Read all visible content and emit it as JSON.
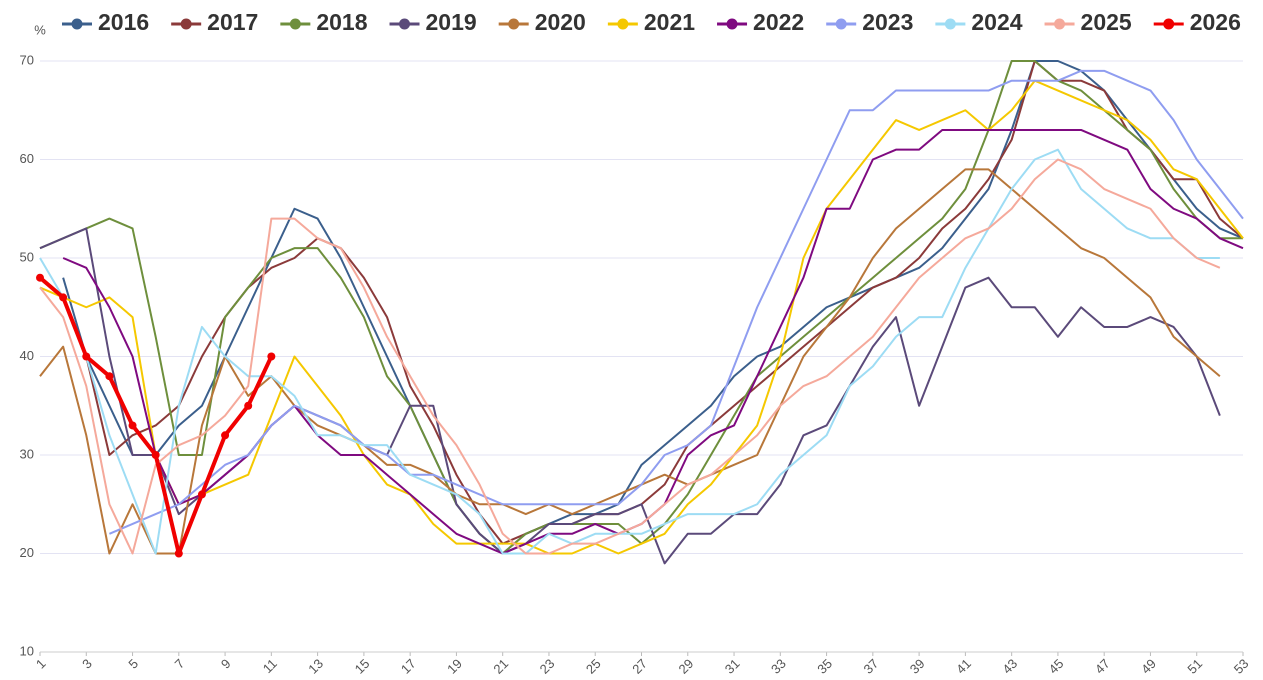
{
  "chart_data": {
    "type": "line",
    "y_unit": "%",
    "x": [
      1,
      2,
      3,
      4,
      5,
      6,
      7,
      8,
      9,
      10,
      11,
      12,
      13,
      14,
      15,
      16,
      17,
      18,
      19,
      20,
      21,
      22,
      23,
      24,
      25,
      26,
      27,
      28,
      29,
      30,
      31,
      32,
      33,
      34,
      35,
      36,
      37,
      38,
      39,
      40,
      41,
      42,
      43,
      44,
      45,
      46,
      47,
      48,
      49,
      50,
      51,
      52,
      53
    ],
    "xlim": [
      1,
      53
    ],
    "xticks": [
      1,
      3,
      5,
      7,
      9,
      11,
      13,
      15,
      17,
      19,
      21,
      23,
      25,
      27,
      29,
      31,
      33,
      35,
      37,
      39,
      41,
      43,
      45,
      47,
      49,
      51,
      53
    ],
    "ylim": [
      10,
      70
    ],
    "yticks": [
      10,
      20,
      30,
      40,
      50,
      60,
      70
    ],
    "grid": true,
    "legend": "top",
    "series": [
      {
        "name": "2016",
        "color": "#3b5f8c",
        "values": [
          null,
          48,
          40,
          35,
          30,
          30,
          33,
          35,
          40,
          45,
          50,
          55,
          54,
          50,
          45,
          40,
          35,
          30,
          25,
          22,
          20,
          22,
          23,
          24,
          24,
          25,
          29,
          31,
          33,
          35,
          38,
          40,
          41,
          43,
          45,
          46,
          47,
          48,
          49,
          51,
          54,
          57,
          63,
          70,
          70,
          69,
          67,
          64,
          61,
          58,
          55,
          53,
          52
        ]
      },
      {
        "name": "2017",
        "color": "#8b3a3a",
        "values": [
          null,
          null,
          40,
          30,
          32,
          33,
          35,
          40,
          44,
          47,
          49,
          50,
          52,
          51,
          48,
          44,
          37,
          33,
          28,
          24,
          21,
          22,
          23,
          23,
          24,
          24,
          25,
          27,
          31,
          33,
          35,
          37,
          39,
          41,
          43,
          45,
          47,
          48,
          50,
          53,
          55,
          58,
          62,
          70,
          68,
          68,
          67,
          63,
          61,
          58,
          58,
          54,
          52
        ]
      },
      {
        "name": "2018",
        "color": "#6e8f3c",
        "values": [
          51,
          52,
          53,
          54,
          53,
          42,
          30,
          30,
          44,
          47,
          50,
          51,
          51,
          48,
          44,
          38,
          35,
          30,
          25,
          22,
          20,
          22,
          23,
          23,
          23,
          23,
          21,
          23,
          26,
          30,
          34,
          38,
          40,
          42,
          44,
          46,
          48,
          50,
          52,
          54,
          57,
          63,
          70,
          70,
          68,
          67,
          65,
          63,
          61,
          57,
          54,
          52,
          52
        ]
      },
      {
        "name": "2019",
        "color": "#5b4a7a",
        "values": [
          51,
          52,
          53,
          40,
          30,
          30,
          24,
          26,
          28,
          30,
          33,
          35,
          34,
          33,
          31,
          30,
          35,
          35,
          25,
          22,
          20,
          21,
          23,
          23,
          24,
          24,
          25,
          19,
          22,
          22,
          24,
          24,
          27,
          32,
          33,
          37,
          41,
          44,
          35,
          41,
          47,
          48,
          45,
          45,
          42,
          45,
          43,
          43,
          44,
          43,
          40,
          34,
          null
        ]
      },
      {
        "name": "2020",
        "color": "#b8773a",
        "values": [
          38,
          41,
          32,
          20,
          25,
          20,
          20,
          33,
          40,
          36,
          38,
          35,
          33,
          32,
          31,
          29,
          29,
          28,
          26,
          25,
          25,
          24,
          25,
          24,
          25,
          26,
          27,
          28,
          27,
          28,
          29,
          30,
          35,
          40,
          43,
          46,
          50,
          53,
          55,
          57,
          59,
          59,
          57,
          55,
          53,
          51,
          50,
          48,
          46,
          42,
          40,
          38,
          null
        ]
      },
      {
        "name": "2021",
        "color": "#f5c800",
        "values": [
          47,
          46,
          45,
          46,
          44,
          30,
          25,
          26,
          27,
          28,
          34,
          40,
          37,
          34,
          30,
          27,
          26,
          23,
          21,
          21,
          21,
          21,
          20,
          20,
          21,
          20,
          21,
          22,
          25,
          27,
          30,
          33,
          40,
          50,
          55,
          58,
          61,
          64,
          63,
          64,
          65,
          63,
          65,
          68,
          67,
          66,
          65,
          64,
          62,
          59,
          58,
          55,
          52
        ]
      },
      {
        "name": "2022",
        "color": "#7f0a80",
        "values": [
          null,
          50,
          49,
          45,
          40,
          30,
          25,
          26,
          28,
          30,
          33,
          35,
          32,
          30,
          30,
          28,
          26,
          24,
          22,
          21,
          20,
          21,
          22,
          22,
          23,
          22,
          23,
          25,
          30,
          32,
          33,
          38,
          43,
          48,
          55,
          55,
          60,
          61,
          61,
          63,
          63,
          63,
          63,
          63,
          63,
          63,
          62,
          61,
          57,
          55,
          54,
          52,
          51
        ]
      },
      {
        "name": "2023",
        "color": "#8f9df0",
        "values": [
          null,
          null,
          null,
          22,
          23,
          24,
          25,
          27,
          29,
          30,
          33,
          35,
          34,
          33,
          31,
          30,
          28,
          28,
          27,
          26,
          25,
          25,
          25,
          25,
          25,
          25,
          27,
          30,
          31,
          33,
          39,
          45,
          50,
          55,
          60,
          65,
          65,
          67,
          67,
          67,
          67,
          67,
          68,
          68,
          68,
          69,
          69,
          68,
          67,
          64,
          60,
          57,
          54
        ]
      },
      {
        "name": "2024",
        "color": "#9ddcf4",
        "values": [
          50,
          46,
          40,
          32,
          26,
          20,
          35,
          43,
          40,
          38,
          38,
          36,
          32,
          32,
          31,
          31,
          28,
          27,
          26,
          24,
          20,
          20,
          22,
          21,
          22,
          22,
          22,
          23,
          24,
          24,
          24,
          25,
          28,
          30,
          32,
          37,
          39,
          42,
          44,
          44,
          49,
          53,
          57,
          60,
          61,
          57,
          55,
          53,
          52,
          52,
          50,
          50,
          null
        ]
      },
      {
        "name": "2025",
        "color": "#f5a99b",
        "values": [
          47,
          44,
          37,
          25,
          20,
          29,
          31,
          32,
          34,
          37,
          54,
          54,
          52,
          51,
          47,
          42,
          38,
          34,
          31,
          27,
          22,
          20,
          20,
          21,
          21,
          22,
          23,
          25,
          27,
          28,
          30,
          32,
          35,
          37,
          38,
          40,
          42,
          45,
          48,
          50,
          52,
          53,
          55,
          58,
          60,
          59,
          57,
          56,
          55,
          52,
          50,
          49,
          null
        ]
      },
      {
        "name": "2026",
        "color": "#f00000",
        "width": 4,
        "markers": true,
        "values": [
          48,
          46,
          40,
          38,
          33,
          30,
          20,
          26,
          32,
          35,
          40,
          null,
          null,
          null,
          null,
          null,
          null,
          null,
          null,
          null,
          null,
          null,
          null,
          null,
          null,
          null,
          null,
          null,
          null,
          null,
          null,
          null,
          null,
          null,
          null,
          null,
          null,
          null,
          null,
          null,
          null,
          null,
          null,
          null,
          null,
          null,
          null,
          null,
          null,
          null,
          null,
          null,
          null
        ]
      }
    ]
  }
}
